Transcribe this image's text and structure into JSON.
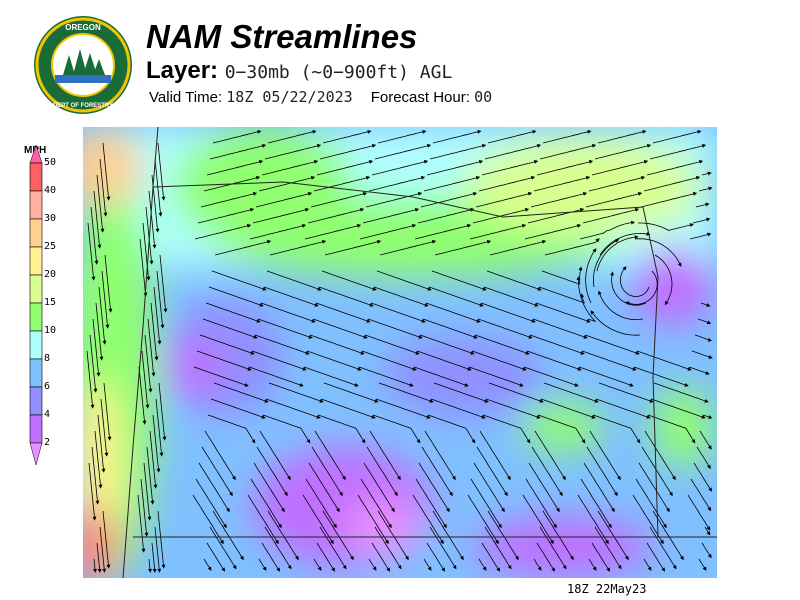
{
  "logo": {
    "text": "OREGON DEPARTMENT OF FORESTRY"
  },
  "header": {
    "title": "NAM Streamlines",
    "layer_label": "Layer:",
    "layer_value": "0−30mb (~0−900ft) AGL",
    "valid_label": "Valid Time:",
    "valid_value": "18Z 05/22/2023",
    "forecast_label": "Forecast Hour:",
    "forecast_value": "00"
  },
  "legend": {
    "unit": "MPH",
    "ticks": [
      "50",
      "40",
      "30",
      "25",
      "20",
      "15",
      "10",
      "8",
      "6",
      "4",
      "2"
    ],
    "colors": [
      "#ff60a8",
      "#ff6060",
      "#ffb0a0",
      "#ffd090",
      "#fff090",
      "#d8ff90",
      "#90ff70",
      "#b0ffff",
      "#80c0ff",
      "#9090ff",
      "#c070ff",
      "#e890ff"
    ]
  },
  "map": {
    "field": "wind speed and streamlines",
    "region": "Oregon"
  },
  "footer": {
    "timestamp": "18Z 22May23"
  }
}
